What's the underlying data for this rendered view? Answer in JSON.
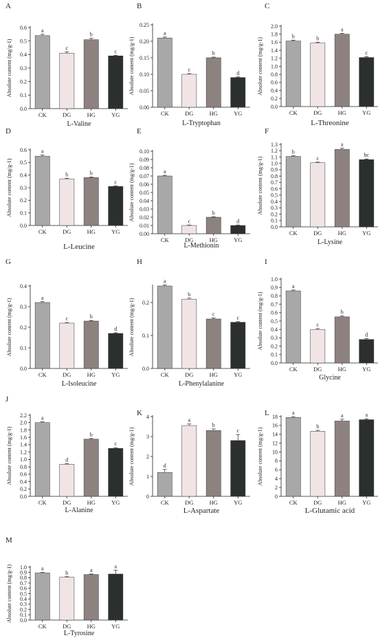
{
  "figure": {
    "y_label": "Absolute content (mg/g-1)",
    "colors": {
      "CK": "#a8a8a8",
      "DG": "#f0e4e4",
      "HG": "#8e8281",
      "YG": "#2c2f2f"
    }
  },
  "chart_data": [
    {
      "panel": "A",
      "type": "bar",
      "xlabel": "L-Valine",
      "ylabel": "Absolute content (mg/g-1)",
      "categories": [
        "CK",
        "DG",
        "HG",
        "YG"
      ],
      "values": [
        0.54,
        0.41,
        0.51,
        0.39
      ],
      "errors": [
        0.01,
        0.01,
        0.01,
        0.005
      ],
      "letters": [
        "a",
        "c",
        "b",
        "c"
      ],
      "ylim": [
        0,
        0.6
      ],
      "yticks": [
        "0.0",
        "0.1",
        "0.2",
        "0.3",
        "0.4",
        "0.5",
        "0.6"
      ]
    },
    {
      "panel": "B",
      "type": "bar",
      "xlabel": "L-Tryptophan",
      "ylabel": "Absolute content (mg/g-1)",
      "categories": [
        "CK",
        "DG",
        "HG",
        "YG"
      ],
      "values": [
        0.21,
        0.1,
        0.15,
        0.09
      ],
      "errors": [
        0.003,
        0.002,
        0.002,
        0.002
      ],
      "letters": [
        "a",
        "c",
        "b",
        "d"
      ],
      "ylim": [
        0,
        0.25
      ],
      "yticks": [
        "0.00",
        "0.05",
        "0.10",
        "0.15",
        "0.20",
        "0.25"
      ]
    },
    {
      "panel": "C",
      "type": "bar",
      "xlabel": "L-Threonine",
      "ylabel": "Absolute content (mg/g-1)",
      "categories": [
        "CK",
        "DG",
        "HG",
        "YG"
      ],
      "values": [
        1.63,
        1.58,
        1.8,
        1.22
      ],
      "errors": [
        0.02,
        0.02,
        0.02,
        0.02
      ],
      "letters": [
        "b",
        "b",
        "a",
        "c"
      ],
      "ylim": [
        0,
        2.0
      ],
      "yticks": [
        "0.0",
        "0.2",
        "0.4",
        "0.6",
        "0.8",
        "1.0",
        "1.2",
        "1.4",
        "1.6",
        "1.8",
        "2.0"
      ]
    },
    {
      "panel": "D",
      "type": "bar",
      "xlabel": "L-Leucine",
      "ylabel": "Absolute content (mg/g-1)",
      "categories": [
        "CK",
        "DG",
        "HG",
        "YG"
      ],
      "values": [
        0.55,
        0.37,
        0.38,
        0.31
      ],
      "errors": [
        0.01,
        0.005,
        0.005,
        0.005
      ],
      "letters": [
        "a",
        "b",
        "b",
        "c"
      ],
      "ylim": [
        0,
        0.6
      ],
      "yticks": [
        "0.0",
        "0.1",
        "0.2",
        "0.3",
        "0.4",
        "0.5",
        "0.6"
      ]
    },
    {
      "panel": "E",
      "type": "bar",
      "xlabel": "L-Methionin",
      "ylabel": "Absolute content (mg/g-1)",
      "categories": [
        "CK",
        "DG",
        "HG",
        "YG"
      ],
      "values": [
        0.07,
        0.01,
        0.02,
        0.01
      ],
      "errors": [
        0.0008,
        0.0006,
        0.0006,
        0.0006
      ],
      "letters": [
        "a",
        "c",
        "b",
        "d"
      ],
      "ylim": [
        0,
        0.1
      ],
      "yticks": [
        "0.00",
        "0.01",
        "0.02",
        "0.03",
        "0.04",
        "0.05",
        "0.06",
        "0.07",
        "0.08",
        "0.09",
        "0.10"
      ]
    },
    {
      "panel": "F",
      "type": "bar",
      "xlabel": "L-Lysine",
      "ylabel": "Absolute content (mg/g-1)",
      "categories": [
        "CK",
        "DG",
        "HG",
        "YG"
      ],
      "values": [
        1.11,
        1.01,
        1.22,
        1.06
      ],
      "errors": [
        0.01,
        0.01,
        0.02,
        0.01
      ],
      "letters": [
        "b",
        "c",
        "a",
        "bc"
      ],
      "ylim": [
        0,
        1.3
      ],
      "yticks": [
        "0.0",
        "0.1",
        "0.2",
        "0.3",
        "0.4",
        "0.5",
        "0.6",
        "0.7",
        "0.8",
        "0.9",
        "1.0",
        "1.1",
        "1.2",
        "1.3"
      ]
    },
    {
      "panel": "G",
      "type": "bar",
      "xlabel": "L-Isoleucine",
      "ylabel": "Absolute content (mg/g-1)",
      "categories": [
        "CK",
        "DG",
        "HG",
        "YG"
      ],
      "values": [
        0.32,
        0.22,
        0.23,
        0.17
      ],
      "errors": [
        0.004,
        0.003,
        0.003,
        0.003
      ],
      "letters": [
        "a",
        "c",
        "b",
        "d"
      ],
      "ylim": [
        0,
        0.4
      ],
      "yticks": [
        "0.0",
        "0.1",
        "0.2",
        "0.3",
        "0.4"
      ]
    },
    {
      "panel": "H",
      "type": "bar",
      "xlabel": "L-Phenylalanine",
      "ylabel": "Absolute content (mg/g-1)",
      "categories": [
        "CK",
        "DG",
        "HG",
        "YG"
      ],
      "values": [
        0.25,
        0.21,
        0.15,
        0.14
      ],
      "errors": [
        0.003,
        0.003,
        0.003,
        0.002
      ],
      "letters": [
        "a",
        "b",
        "c",
        "c"
      ],
      "ylim": [
        0,
        0.25
      ],
      "yticks": [
        "0.0",
        "0.1",
        "0.2"
      ]
    },
    {
      "panel": "I",
      "type": "bar",
      "xlabel": "Glycine",
      "ylabel": "Absolute content (mg/g-1)",
      "categories": [
        "CK",
        "DG",
        "HG",
        "YG"
      ],
      "values": [
        0.86,
        0.4,
        0.55,
        0.28
      ],
      "errors": [
        0.01,
        0.01,
        0.01,
        0.01
      ],
      "letters": [
        "a",
        "c",
        "b",
        "d"
      ],
      "ylim": [
        0,
        1.0
      ],
      "yticks": [
        "0.0",
        "0.1",
        "0.2",
        "0.3",
        "0.4",
        "0.5",
        "0.6",
        "0.7",
        "0.8",
        "0.9",
        "1.0"
      ]
    },
    {
      "panel": "J",
      "type": "bar",
      "xlabel": "L-Alanine",
      "ylabel": "Absolute content (mg/g-1)",
      "categories": [
        "CK",
        "DG",
        "HG",
        "YG"
      ],
      "values": [
        2.0,
        0.87,
        1.55,
        1.3
      ],
      "errors": [
        0.02,
        0.02,
        0.02,
        0.02
      ],
      "letters": [
        "a",
        "d",
        "b",
        "c"
      ],
      "ylim": [
        0,
        2.2
      ],
      "yticks": [
        "0.0",
        "0.2",
        "0.4",
        "0.6",
        "0.8",
        "1.0",
        "1.2",
        "1.4",
        "1.6",
        "1.8",
        "2.0",
        "2.2"
      ]
    },
    {
      "panel": "K",
      "type": "bar",
      "xlabel": "L-Aspartate",
      "ylabel": "Absolute content (mg/g-1)",
      "categories": [
        "CK",
        "DG",
        "HG",
        "YG"
      ],
      "values": [
        1.2,
        3.55,
        3.3,
        2.8
      ],
      "errors": [
        0.15,
        0.08,
        0.08,
        0.3
      ],
      "letters": [
        "d",
        "a",
        "b",
        "c"
      ],
      "ylim": [
        0,
        4
      ],
      "yticks": [
        "0",
        "1",
        "2",
        "3",
        "4"
      ]
    },
    {
      "panel": "L",
      "type": "bar",
      "xlabel": "L-Glutamic acid",
      "ylabel": "Absolute content (mg/g-1)",
      "categories": [
        "CK",
        "DG",
        "HG",
        "YG"
      ],
      "values": [
        17.8,
        14.7,
        17.0,
        17.3
      ],
      "errors": [
        0.2,
        0.2,
        0.4,
        0.2
      ],
      "letters": [
        "a",
        "b",
        "a",
        "a"
      ],
      "ylim": [
        0,
        18
      ],
      "yticks": [
        "0",
        "2",
        "4",
        "6",
        "8",
        "10",
        "12",
        "14",
        "16",
        "18"
      ]
    },
    {
      "panel": "M",
      "type": "bar",
      "xlabel": "L-Tyrosine",
      "ylabel": "Absolute content (mg/g-1)",
      "categories": [
        "CK",
        "DG",
        "HG",
        "YG"
      ],
      "values": [
        0.89,
        0.81,
        0.86,
        0.87
      ],
      "errors": [
        0.01,
        0.01,
        0.01,
        0.07
      ],
      "letters": [
        "a",
        "b",
        "a",
        "a"
      ],
      "ylim": [
        0,
        1.0
      ],
      "yticks": [
        "0.0",
        "0.1",
        "0.2",
        "0.3",
        "0.4",
        "0.5",
        "0.6",
        "0.7",
        "0.8",
        "0.9",
        "1.0"
      ]
    }
  ]
}
